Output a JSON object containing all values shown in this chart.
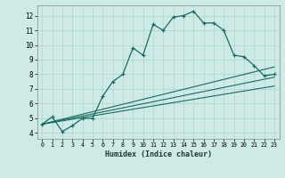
{
  "xlabel": "Humidex (Indice chaleur)",
  "bg_color": "#ceeae6",
  "line_color": "#1a6b5e",
  "grid_color": "#aed4ce",
  "xlim": [
    -0.5,
    23.5
  ],
  "ylim": [
    3.6,
    12.7
  ],
  "xticks": [
    0,
    1,
    2,
    3,
    4,
    5,
    6,
    7,
    8,
    9,
    10,
    11,
    12,
    13,
    14,
    15,
    16,
    17,
    18,
    19,
    20,
    21,
    22,
    23
  ],
  "yticks": [
    4,
    5,
    6,
    7,
    8,
    9,
    10,
    11,
    12
  ],
  "main_x": [
    0,
    1,
    2,
    3,
    4,
    5,
    6,
    7,
    8,
    9,
    10,
    11,
    12,
    13,
    14,
    15,
    16,
    17,
    18,
    19,
    20,
    21,
    22,
    23
  ],
  "main_y": [
    4.6,
    5.1,
    4.1,
    4.5,
    5.0,
    5.0,
    6.5,
    7.5,
    8.0,
    9.8,
    9.3,
    11.4,
    11.0,
    11.9,
    12.0,
    12.3,
    11.5,
    11.5,
    11.0,
    9.3,
    9.2,
    8.6,
    7.9,
    8.0
  ],
  "line1_x": [
    0,
    23
  ],
  "line1_y": [
    4.6,
    8.5
  ],
  "line2_x": [
    0,
    23
  ],
  "line2_y": [
    4.6,
    7.8
  ],
  "line3_x": [
    0,
    23
  ],
  "line3_y": [
    4.6,
    7.2
  ]
}
